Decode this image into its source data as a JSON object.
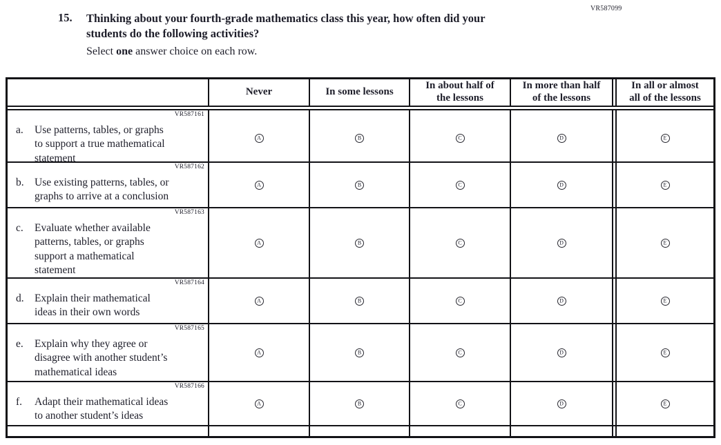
{
  "page": {
    "form_code": "VR587099",
    "question_number": "15.",
    "question_text": "Thinking about your fourth-grade mathematics class this year, how often did your\nstudents do the following activities?",
    "instruction": {
      "prefix": "Select ",
      "bold": "one",
      "suffix": " answer choice on each row."
    }
  },
  "table": {
    "column_headers": [
      "Never",
      "In some lessons",
      "In about half of\nthe lessons",
      "In more than half\nof the lessons",
      "In all or almost\nall of the lessons"
    ],
    "option_letters": [
      "A",
      "B",
      "C",
      "D",
      "E"
    ],
    "rows": [
      {
        "code": "VR587161",
        "label": "a.",
        "text": "Use patterns, tables, or graphs\nto support a true mathematical\nstatement"
      },
      {
        "code": "VR587162",
        "label": "b.",
        "text": "Use existing patterns, tables, or\ngraphs to arrive at a conclusion"
      },
      {
        "code": "VR587163",
        "label": "c.",
        "text": "Evaluate whether available\npatterns, tables, or graphs\nsupport a mathematical\nstatement"
      },
      {
        "code": "VR587164",
        "label": "d.",
        "text": "Explain their mathematical\nideas in their own words"
      },
      {
        "code": "VR587165",
        "label": "e.",
        "text": "Explain why they agree or\ndisagree with another student’s\nmathematical ideas"
      },
      {
        "code": "VR587166",
        "label": "f.",
        "text": "Adapt their mathematical ideas\nto another student’s ideas"
      }
    ]
  },
  "colors": {
    "text": "#1e1e2a",
    "border": "#121216"
  }
}
